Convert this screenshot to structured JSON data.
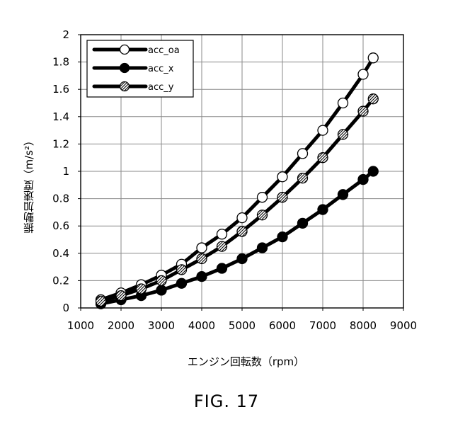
{
  "chart_data": {
    "type": "line",
    "xlabel": "エンジン回転数（rpm）",
    "ylabel": "振動加速度（m/s²）",
    "xlim": [
      1000,
      9000
    ],
    "ylim": [
      0,
      2
    ],
    "xticks": [
      "1000",
      "2000",
      "3000",
      "4000",
      "5000",
      "6000",
      "7000",
      "8000",
      "9000"
    ],
    "yticks": [
      "0",
      "0.2",
      "0.4",
      "0.6",
      "0.8",
      "1",
      "1.2",
      "1.4",
      "1.6",
      "1.8",
      "2"
    ],
    "grid": true,
    "legend_position": "top-left",
    "x": [
      1500,
      2000,
      2500,
      3000,
      3500,
      4000,
      4500,
      5000,
      5500,
      6000,
      6500,
      7000,
      7500,
      8000,
      8250
    ],
    "series": [
      {
        "name": "acc_oa",
        "marker": "open-circle",
        "values": [
          0.06,
          0.11,
          0.17,
          0.24,
          0.32,
          0.44,
          0.54,
          0.66,
          0.81,
          0.96,
          1.13,
          1.3,
          1.5,
          1.71,
          1.83
        ]
      },
      {
        "name": "acc_x",
        "marker": "filled-circle",
        "values": [
          0.03,
          0.06,
          0.09,
          0.13,
          0.18,
          0.23,
          0.29,
          0.36,
          0.44,
          0.52,
          0.62,
          0.72,
          0.83,
          0.94,
          1.0
        ]
      },
      {
        "name": "acc_y",
        "marker": "hatched-circle",
        "values": [
          0.05,
          0.09,
          0.14,
          0.2,
          0.28,
          0.36,
          0.45,
          0.56,
          0.68,
          0.81,
          0.95,
          1.1,
          1.27,
          1.44,
          1.53
        ]
      }
    ]
  },
  "caption": "FIG. 17"
}
